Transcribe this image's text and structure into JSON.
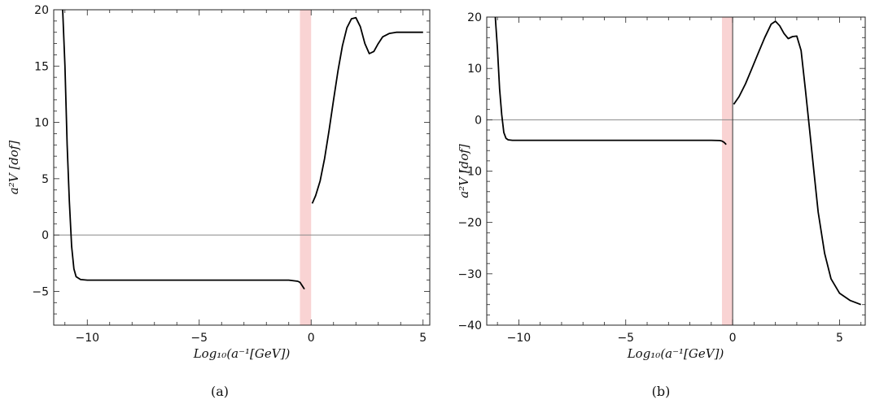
{
  "chart_data": [
    {
      "type": "line",
      "caption": "(a)",
      "xlabel": "Log₁₀(a⁻¹[GeV])",
      "ylabel": "a²V [dof]",
      "xlim": [
        -11.5,
        5.3
      ],
      "ylim": [
        -8,
        20
      ],
      "xticks": [
        -10,
        -5,
        0,
        5
      ],
      "xtick_labels": [
        "−10",
        "−5",
        "0",
        "5"
      ],
      "yticks": [
        -5,
        0,
        5,
        10,
        15,
        20
      ],
      "ytick_labels": [
        "−5",
        "0",
        "5",
        "10",
        "15",
        "20"
      ],
      "shaded_band": {
        "x0": -0.5,
        "x1": 0.0,
        "color": "#f9d3d3"
      },
      "zero_line": true,
      "line_color": "#000000",
      "series": [
        {
          "x": [
            -11.1,
            -11.0,
            -10.9,
            -10.8,
            -10.7,
            -10.6,
            -10.5,
            -10.3,
            -10.0,
            -8,
            -6,
            -4,
            -2,
            -1.0,
            -0.6,
            -0.5,
            -0.4,
            -0.3
          ],
          "y": [
            20,
            15,
            8,
            3,
            -1,
            -3,
            -3.7,
            -3.95,
            -4.0,
            -4.0,
            -4.0,
            -4.0,
            -4.0,
            -4.0,
            -4.1,
            -4.2,
            -4.5,
            -4.8
          ]
        },
        {
          "x": [
            0.05,
            0.2,
            0.4,
            0.6,
            0.8,
            1.0,
            1.2,
            1.4,
            1.6,
            1.8,
            2.0,
            2.2,
            2.4,
            2.6,
            2.8,
            3.0,
            3.2,
            3.5,
            3.8,
            4.2,
            4.6,
            5.0
          ],
          "y": [
            2.8,
            3.5,
            4.8,
            6.8,
            9.3,
            12.0,
            14.6,
            16.8,
            18.4,
            19.2,
            19.3,
            18.5,
            17.0,
            16.1,
            16.3,
            17.0,
            17.6,
            17.9,
            18.0,
            18.0,
            18.0,
            18.0
          ]
        }
      ]
    },
    {
      "type": "line",
      "caption": "(b)",
      "xlabel": "Log₁₀(a⁻¹[GeV])",
      "ylabel": "a²V [dof]",
      "xlim": [
        -11.5,
        6.2
      ],
      "ylim": [
        -40,
        20
      ],
      "xticks": [
        -10,
        -5,
        0,
        5
      ],
      "xtick_labels": [
        "−10",
        "−5",
        "0",
        "5"
      ],
      "yticks": [
        -40,
        -30,
        -20,
        -10,
        0,
        10,
        20
      ],
      "ytick_labels": [
        "−40",
        "−30",
        "−20",
        "−10",
        "0",
        "10",
        "20"
      ],
      "shaded_band": {
        "x0": -0.5,
        "x1": 0.0,
        "color": "#f9d3d3"
      },
      "zero_line": true,
      "line_color": "#000000",
      "series": [
        {
          "x": [
            -11.1,
            -11.0,
            -10.9,
            -10.8,
            -10.7,
            -10.6,
            -10.5,
            -10.3,
            -10.0,
            -8,
            -6,
            -4,
            -2,
            -1.0,
            -0.6,
            -0.5,
            -0.4,
            -0.3
          ],
          "y": [
            20,
            14,
            6,
            1,
            -2.5,
            -3.6,
            -3.9,
            -4.0,
            -4.0,
            -4.0,
            -4.0,
            -4.0,
            -4.0,
            -4.0,
            -4.05,
            -4.15,
            -4.4,
            -4.8
          ]
        },
        {
          "x": [
            0.05,
            0.3,
            0.6,
            0.9,
            1.2,
            1.5,
            1.8,
            2.0,
            2.2,
            2.4,
            2.6,
            2.8,
            3.0,
            3.2,
            3.4,
            3.6,
            3.8,
            4.0,
            4.3,
            4.6,
            5.0,
            5.5,
            6.0
          ],
          "y": [
            3.0,
            4.5,
            7.0,
            10.0,
            13.0,
            16.0,
            18.6,
            19.2,
            18.3,
            16.8,
            15.8,
            16.2,
            16.3,
            13.5,
            6.0,
            -2.0,
            -10.0,
            -18.0,
            -26.0,
            -31.0,
            -33.8,
            -35.2,
            -36.0
          ]
        }
      ]
    }
  ]
}
